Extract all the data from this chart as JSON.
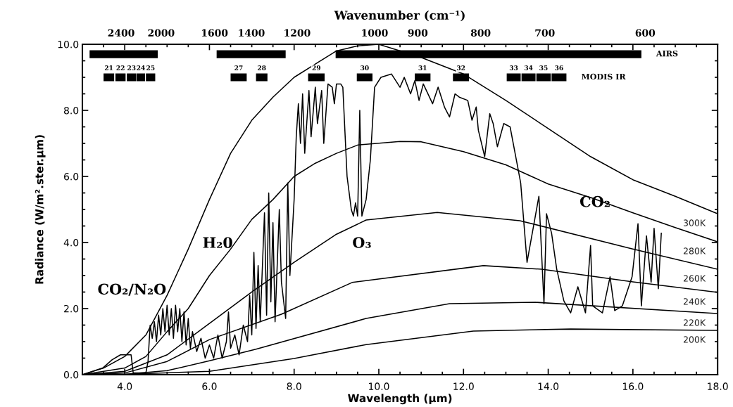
{
  "chart_data": {
    "type": "line",
    "legend": "right",
    "xlabel": "Wavelength (µm)",
    "ylabel": "Radiance (W/m².ster.µm)",
    "x2label": "Wavenumber (cm⁻¹)",
    "xlim": [
      3,
      18
    ],
    "ylim": [
      0,
      10
    ],
    "xticks": [
      {
        "value": 4,
        "label": "4.0"
      },
      {
        "value": 6,
        "label": "6.0"
      },
      {
        "value": 8,
        "label": "8.0"
      },
      {
        "value": 10,
        "label": "10.0"
      },
      {
        "value": 12,
        "label": "12.0"
      },
      {
        "value": 14,
        "label": "14.0"
      },
      {
        "value": 16,
        "label": "16.0"
      },
      {
        "value": 18,
        "label": "18.0"
      }
    ],
    "yticks": [
      {
        "value": 0,
        "label": "0.0"
      },
      {
        "value": 2,
        "label": "2.0"
      },
      {
        "value": 4,
        "label": "4.0"
      },
      {
        "value": 6,
        "label": "6.0"
      },
      {
        "value": 8,
        "label": "8.0"
      },
      {
        "value": 10,
        "label": "10.0"
      }
    ],
    "annotations": [
      "CO₂/N₂O",
      "H₂0",
      "O₃",
      "CO₂",
      "2400",
      "2000",
      "1600",
      "1400",
      "1200",
      "1000",
      "900",
      "800",
      "700",
      "600",
      {
        "text": "21",
        "x": 3.625,
        "y": 9.0
      },
      {
        "text": "22",
        "x": 3.9,
        "y": 9.0
      },
      {
        "text": "23",
        "x": 4.16,
        "y": 9.0
      },
      {
        "text": "24",
        "x": 4.38,
        "y": 9.0
      },
      {
        "text": "25",
        "x": 4.61,
        "y": 9.0
      },
      {
        "text": "27",
        "x": 6.69,
        "y": 9.0
      },
      {
        "text": "28",
        "x": 7.235,
        "y": 9.0
      },
      {
        "text": "29",
        "x": 8.525,
        "y": 9.0
      },
      {
        "text": "30",
        "x": 9.665,
        "y": 9.0
      },
      {
        "text": "31",
        "x": 11.035,
        "y": 9.0
      },
      {
        "text": "32",
        "x": 11.94,
        "y": 9.0
      },
      {
        "text": "33",
        "x": 13.185,
        "y": 9.0
      },
      {
        "text": "34",
        "x": 13.535,
        "y": 9.0
      },
      {
        "text": "35",
        "x": 13.89,
        "y": 9.0
      },
      {
        "text": "36",
        "x": 14.255,
        "y": 9.0
      }
    ],
    "series": [
      {
        "name": "300K",
        "color": "#000000",
        "x": [
          3.0,
          3.5,
          4.0,
          4.5,
          5.0,
          5.5,
          6.0,
          6.5,
          7.0,
          7.5,
          8.0,
          8.5,
          9.0,
          9.5,
          10.0,
          11.0,
          12.0,
          13.0,
          14.0,
          15.0,
          16.0,
          17.0,
          18.0
        ],
        "values": [
          0.0,
          0.2,
          0.55,
          1.2,
          2.4,
          3.8,
          5.3,
          6.7,
          7.7,
          8.4,
          9.0,
          9.4,
          9.8,
          9.95,
          10.0,
          9.6,
          9.1,
          8.3,
          7.45,
          6.6,
          5.9,
          5.4,
          4.87
        ]
      },
      {
        "name": "280K",
        "color": "#000000",
        "x": [
          3.0,
          4.0,
          4.5,
          5.0,
          5.5,
          6.0,
          6.5,
          7.0,
          7.5,
          8.0,
          8.5,
          9.0,
          9.5,
          10.5,
          11.0,
          12.0,
          13.0,
          14.0,
          15.0,
          16.0,
          17.0,
          18.0
        ],
        "values": [
          0.0,
          0.2,
          0.55,
          1.3,
          2.0,
          3.0,
          3.8,
          4.7,
          5.3,
          6.0,
          6.4,
          6.7,
          6.95,
          7.06,
          7.05,
          6.75,
          6.35,
          5.77,
          5.36,
          4.9,
          4.45,
          4.02
        ]
      },
      {
        "name": "260K",
        "color": "#000000",
        "x": [
          3.0,
          4.0,
          5.0,
          6.0,
          7.0,
          8.0,
          9.0,
          9.7,
          11.38,
          13.33,
          15.98,
          18.0
        ],
        "values": [
          0.0,
          0.1,
          0.6,
          1.55,
          2.5,
          3.4,
          4.25,
          4.68,
          4.91,
          4.66,
          3.81,
          3.19
        ]
      },
      {
        "name": "240K",
        "color": "#000000",
        "x": [
          3.0,
          4.0,
          5.0,
          6.0,
          7.7,
          9.37,
          12.47,
          13.85,
          16.0,
          18.0
        ],
        "values": [
          0.0,
          0.05,
          0.4,
          1.06,
          1.83,
          2.79,
          3.3,
          3.19,
          2.81,
          2.49
        ]
      },
      {
        "name": "220K",
        "color": "#000000",
        "x": [
          3.0,
          4.0,
          5.0,
          6.0,
          7.1,
          9.7,
          11.67,
          13.7,
          18.0
        ],
        "values": [
          0.0,
          0.01,
          0.12,
          0.42,
          0.77,
          1.7,
          2.15,
          2.19,
          1.85
        ]
      },
      {
        "name": "200K",
        "color": "#000000",
        "x": [
          3.0,
          4.0,
          6.0,
          8.0,
          9.7,
          12.23,
          14.53,
          18.0
        ],
        "values": [
          0.0,
          0.01,
          0.1,
          0.49,
          0.91,
          1.32,
          1.38,
          1.34
        ]
      },
      {
        "color": "#000000",
        "x": [
          3.0,
          3.48,
          3.7,
          3.9,
          4.15,
          4.2,
          4.5,
          4.55,
          4.6,
          4.65,
          4.7,
          4.75,
          4.8,
          4.85,
          4.9,
          4.95,
          5.0,
          5.05,
          5.1,
          5.15,
          5.2,
          5.25,
          5.3,
          5.35,
          5.4,
          5.45,
          5.5,
          5.55,
          5.6,
          5.7,
          5.8,
          5.9,
          6.0,
          6.1,
          6.2,
          6.3,
          6.4,
          6.45,
          6.5,
          6.6,
          6.7,
          6.8,
          6.9,
          6.95,
          7.0,
          7.05,
          7.1,
          7.15,
          7.2,
          7.3,
          7.35,
          7.4,
          7.45,
          7.5,
          7.55,
          7.65,
          7.7,
          7.8,
          7.85,
          7.9,
          8.0,
          8.05,
          8.1,
          8.15,
          8.2,
          8.25,
          8.35,
          8.4,
          8.5,
          8.55,
          8.65,
          8.7,
          8.8,
          8.9,
          8.95,
          9.0,
          9.1,
          9.15,
          9.25,
          9.35,
          9.4,
          9.45,
          9.5,
          9.55,
          9.6,
          9.7,
          9.8,
          9.9,
          10.05,
          10.3,
          10.5,
          10.6,
          10.75,
          10.85,
          10.95,
          11.05,
          11.27,
          11.4,
          11.55,
          11.67,
          11.8,
          11.9,
          12.1,
          12.2,
          12.3,
          12.35,
          12.5,
          12.62,
          12.7,
          12.8,
          12.95,
          13.1,
          13.27,
          13.35,
          13.5,
          13.78,
          13.9,
          13.96,
          14.08,
          14.2,
          14.37,
          14.53,
          14.7,
          14.88,
          15.0,
          15.05,
          15.28,
          15.46,
          15.57,
          15.75,
          15.98,
          16.12,
          16.2,
          16.32,
          16.43,
          16.5,
          16.6,
          16.67
        ],
        "values": [
          0.0,
          0.2,
          0.45,
          0.6,
          0.6,
          0.05,
          0.05,
          0.4,
          1.5,
          1.1,
          1.6,
          1.0,
          1.8,
          1.2,
          2.0,
          1.3,
          2.1,
          1.2,
          2.0,
          1.1,
          2.1,
          1.3,
          2.0,
          1.0,
          1.9,
          0.9,
          1.7,
          0.8,
          1.3,
          0.7,
          1.1,
          0.5,
          0.9,
          0.5,
          1.2,
          0.5,
          1.0,
          1.9,
          0.8,
          1.2,
          0.6,
          1.5,
          1.0,
          2.4,
          1.2,
          3.7,
          1.4,
          3.3,
          1.6,
          4.9,
          1.8,
          5.5,
          2.2,
          4.6,
          1.6,
          5.0,
          2.8,
          1.7,
          5.8,
          3.0,
          5.3,
          7.2,
          8.2,
          7.0,
          8.5,
          6.7,
          8.6,
          7.2,
          8.7,
          7.6,
          8.6,
          7.0,
          8.8,
          8.7,
          8.2,
          8.8,
          8.8,
          8.7,
          6.0,
          5.0,
          4.8,
          5.2,
          4.8,
          8.0,
          4.8,
          5.3,
          6.5,
          8.7,
          9.0,
          9.1,
          8.7,
          9.0,
          8.5,
          8.9,
          8.3,
          8.8,
          8.2,
          8.7,
          8.1,
          7.8,
          8.5,
          8.4,
          8.3,
          7.7,
          8.1,
          7.4,
          6.6,
          7.9,
          7.6,
          6.9,
          7.6,
          7.5,
          6.35,
          5.8,
          3.4,
          5.4,
          2.15,
          4.87,
          4.28,
          3.2,
          2.23,
          1.87,
          2.66,
          1.87,
          3.91,
          2.08,
          1.87,
          2.96,
          1.94,
          2.08,
          2.96,
          4.57,
          2.08,
          4.2,
          2.8,
          4.43,
          2.6,
          4.28
        ]
      },
      {
        "name": "AIRS",
        "color": "#000000",
        "x": [
          3.17,
          4.78,
          5.5,
          6.17,
          7.8,
          8.4,
          8.98,
          16.2
        ],
        "values": [
          9.7,
          9.7,
          null,
          9.7,
          9.7,
          null,
          9.7,
          9.7
        ]
      },
      {
        "name": "MODIS IR",
        "color": "#000000",
        "x": [
          3.5,
          3.75,
          3.765,
          3.78,
          4.02,
          4.035,
          4.05,
          4.27,
          4.275,
          4.28,
          4.48,
          4.49,
          4.5,
          4.72,
          5.6,
          6.5,
          6.88,
          7.0,
          7.1,
          7.37,
          7.8,
          8.33,
          8.72,
          9.1,
          9.48,
          9.85,
          10.3,
          10.85,
          11.22,
          11.5,
          11.75,
          12.13,
          12.5,
          13.02,
          13.35,
          13.36,
          13.37,
          13.7,
          13.71,
          13.72,
          14.06,
          14.07,
          14.08,
          14.43
        ],
        "values": [
          9.0,
          9.0,
          null,
          9.0,
          9.0,
          null,
          9.0,
          9.0,
          null,
          9.0,
          9.0,
          null,
          9.0,
          9.0,
          null,
          9.0,
          9.0,
          null,
          9.0,
          9.0,
          null,
          9.0,
          9.0,
          null,
          9.0,
          9.0,
          null,
          9.0,
          9.0,
          null,
          9.0,
          9.0,
          null,
          9.0,
          9.0,
          null,
          9.0,
          9.0,
          null,
          9.0,
          9.0,
          null,
          9.0,
          9.0
        ]
      }
    ]
  }
}
